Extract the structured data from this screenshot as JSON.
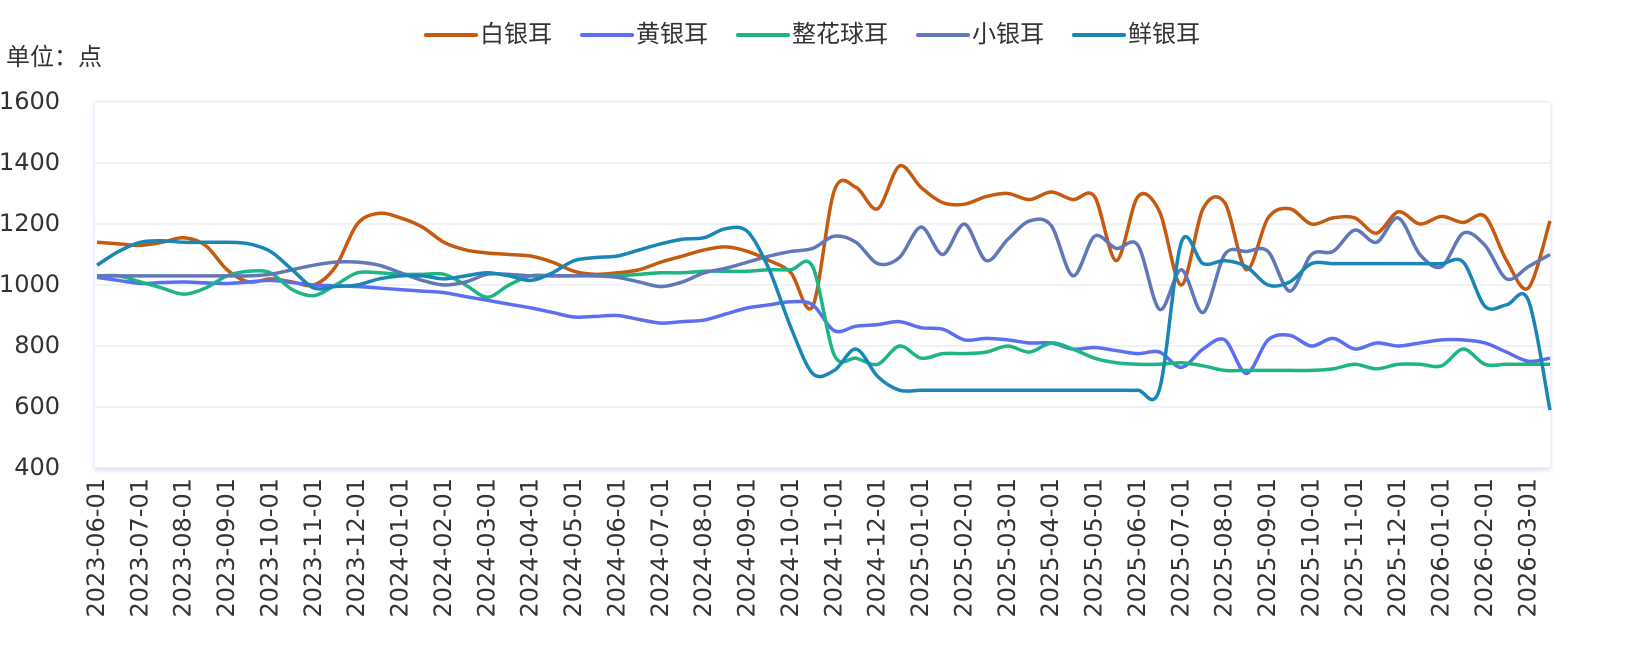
{
  "chart_data": {
    "type": "line",
    "y_unit_label": "单位：点",
    "categories": [
      "2023-06-01",
      null,
      "2023-07-01",
      null,
      "2023-08-01",
      null,
      "2023-09-01",
      null,
      "2023-10-01",
      null,
      "2023-11-01",
      null,
      "2023-12-01",
      null,
      "2024-01-01",
      null,
      "2024-02-01",
      null,
      "2024-03-01",
      null,
      "2024-04-01",
      null,
      "2024-05-01",
      null,
      "2024-06-01",
      null,
      "2024-07-01",
      null,
      "2024-08-01",
      null,
      "2024-09-01",
      null,
      "2024-10-01",
      null,
      "2024-11-01",
      null,
      "2024-12-01",
      null,
      "2025-01-01",
      null,
      "2025-02-01",
      null,
      "2025-03-01",
      null,
      "2025-04-01",
      null,
      "2025-05-01",
      null,
      "2025-06-01",
      null,
      "2025-07-01",
      null,
      "2025-08-01",
      null,
      "2025-09-01",
      null,
      "2025-10-01",
      null,
      "2025-11-01",
      null,
      "2025-12-01",
      null,
      "2026-01-01",
      null,
      "2026-02-01",
      null,
      "2026-03-01",
      null
    ],
    "series": [
      {
        "name": "白银耳",
        "color": "#c55a11",
        "values": [
          1140,
          1135,
          1130,
          1140,
          1155,
          1130,
          1050,
          1010,
          1020,
          1010,
          1000,
          1060,
          1200,
          1235,
          1220,
          1190,
          1140,
          1115,
          1105,
          1100,
          1095,
          1075,
          1045,
          1035,
          1040,
          1050,
          1075,
          1095,
          1115,
          1125,
          1110,
          1080,
          1040,
          930,
          1310,
          1320,
          1250,
          1390,
          1320,
          1270,
          1265,
          1290,
          1300,
          1280,
          1305,
          1280,
          1290,
          1080,
          1290,
          1240,
          1000,
          1250,
          1270,
          1050,
          1220,
          1250,
          1200,
          1220,
          1220,
          1170,
          1240,
          1200,
          1225,
          1205,
          1225,
          1080,
          990,
          1210
        ]
      },
      {
        "name": "黄银耳",
        "color": "#5b6ff2",
        "values": [
          1025,
          1015,
          1005,
          1008,
          1010,
          1007,
          1005,
          1010,
          1015,
          1008,
          1000,
          998,
          995,
          990,
          985,
          980,
          975,
          962,
          950,
          937,
          925,
          910,
          895,
          897,
          900,
          887,
          875,
          880,
          885,
          905,
          925,
          935,
          945,
          935,
          850,
          865,
          870,
          880,
          860,
          855,
          820,
          825,
          820,
          810,
          810,
          790,
          795,
          785,
          775,
          780,
          730,
          790,
          820,
          710,
          820,
          835,
          800,
          825,
          790,
          810,
          800,
          810,
          820,
          820,
          810,
          780,
          750,
          760
        ]
      },
      {
        "name": "整花球耳",
        "color": "#1db584",
        "values": [
          1030,
          1030,
          1010,
          990,
          970,
          990,
          1030,
          1045,
          1040,
          985,
          965,
          1000,
          1040,
          1040,
          1035,
          1035,
          1035,
          1000,
          960,
          1000,
          1030,
          1030,
          1030,
          1030,
          1030,
          1035,
          1040,
          1040,
          1045,
          1045,
          1045,
          1050,
          1050,
          1060,
          770,
          760,
          740,
          800,
          760,
          775,
          775,
          780,
          800,
          780,
          810,
          790,
          760,
          745,
          740,
          740,
          745,
          735,
          720,
          720,
          720,
          720,
          720,
          725,
          740,
          725,
          740,
          740,
          735,
          790,
          740,
          740,
          740,
          740
        ]
      },
      {
        "name": "小银耳",
        "color": "#6277b8",
        "values": [
          1030,
          1030,
          1030,
          1030,
          1030,
          1030,
          1030,
          1030,
          1035,
          1050,
          1065,
          1075,
          1075,
          1065,
          1040,
          1015,
          1000,
          1010,
          1035,
          1035,
          1030,
          1030,
          1030,
          1030,
          1025,
          1010,
          995,
          1010,
          1040,
          1055,
          1075,
          1095,
          1110,
          1120,
          1160,
          1140,
          1070,
          1090,
          1190,
          1100,
          1200,
          1080,
          1150,
          1210,
          1195,
          1030,
          1160,
          1120,
          1130,
          920,
          1050,
          910,
          1100,
          1110,
          1110,
          980,
          1100,
          1110,
          1180,
          1140,
          1220,
          1100,
          1060,
          1170,
          1130,
          1020,
          1060,
          1100
        ]
      },
      {
        "name": "鲜银耳",
        "color": "#1a86b6",
        "values": [
          1065,
          1110,
          1140,
          1145,
          1140,
          1140,
          1140,
          1135,
          1110,
          1050,
          990,
          995,
          1000,
          1020,
          1030,
          1030,
          1020,
          1030,
          1040,
          1030,
          1015,
          1040,
          1080,
          1090,
          1095,
          1115,
          1135,
          1150,
          1155,
          1185,
          1175,
          1050,
          860,
          710,
          720,
          790,
          700,
          655,
          655,
          655,
          655,
          655,
          655,
          655,
          655,
          655,
          655,
          655,
          655,
          660,
          1140,
          1070,
          1080,
          1060,
          1000,
          1010,
          1070,
          1070,
          1070,
          1070,
          1070,
          1070,
          1070,
          1075,
          930,
          935,
          950,
          590
        ]
      }
    ],
    "ylim": [
      400,
      1600
    ],
    "yticks": [
      400,
      600,
      800,
      1000,
      1200,
      1400,
      1600
    ],
    "grid": true
  }
}
